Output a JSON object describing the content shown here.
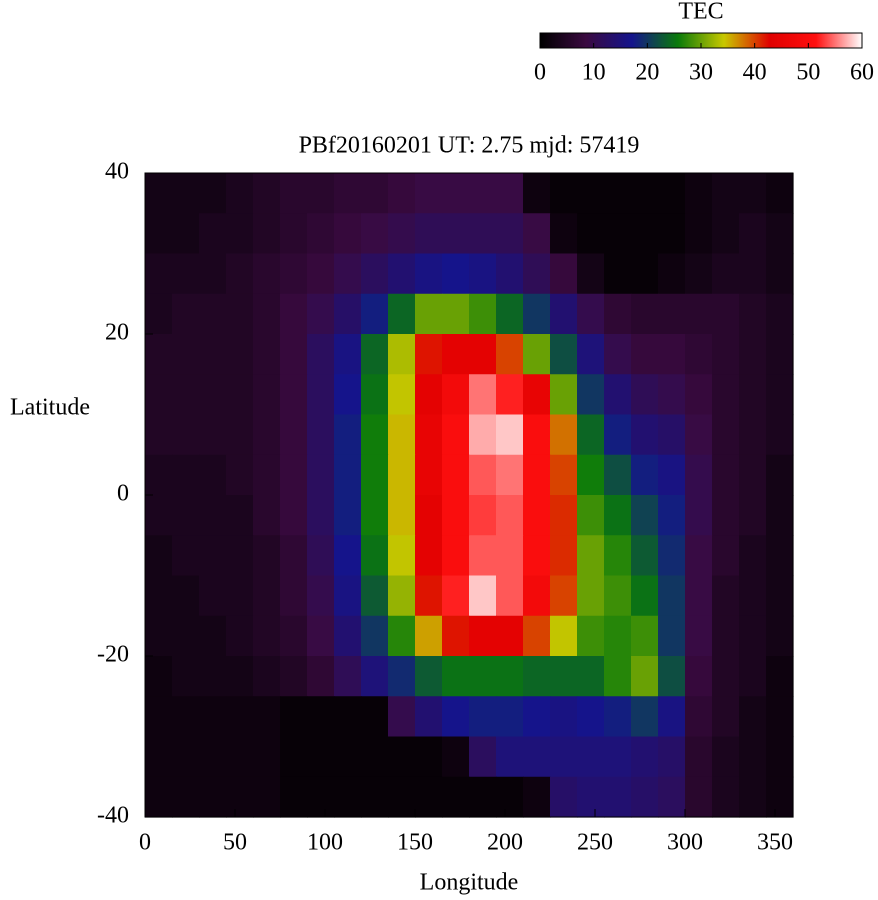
{
  "chart_data": {
    "type": "heatmap",
    "title": "PBf20160201  UT: 2.75  mjd: 57419",
    "xlabel": "Longitude",
    "ylabel": "Latitude",
    "xlim": [
      0,
      360
    ],
    "ylim": [
      -40,
      40
    ],
    "xticks": [
      0,
      50,
      100,
      150,
      200,
      250,
      300,
      350
    ],
    "yticks": [
      -40,
      -20,
      0,
      20,
      40
    ],
    "x": [
      7.5,
      22.5,
      37.5,
      52.5,
      67.5,
      82.5,
      97.5,
      112.5,
      127.5,
      142.5,
      157.5,
      172.5,
      187.5,
      202.5,
      217.5,
      232.5,
      247.5,
      262.5,
      277.5,
      292.5,
      307.5,
      322.5,
      337.5,
      352.5
    ],
    "y": [
      37.5,
      32.5,
      27.5,
      22.5,
      17.5,
      12.5,
      7.5,
      2.5,
      -2.5,
      -7.5,
      -12.5,
      -17.5,
      -22.5,
      -27.5,
      -32.5,
      -37.5
    ],
    "z": [
      [
        3,
        3,
        3,
        4,
        5,
        6,
        6,
        7,
        7,
        8,
        9,
        9,
        9,
        9,
        2,
        1,
        1,
        1,
        1,
        1,
        2,
        3,
        3,
        2
      ],
      [
        3,
        3,
        4,
        4,
        5,
        6,
        7,
        8,
        9,
        10,
        11,
        11,
        11,
        11,
        9,
        2,
        1,
        1,
        1,
        1,
        2,
        3,
        4,
        3
      ],
      [
        4,
        4,
        4,
        5,
        6,
        7,
        8,
        10,
        12,
        14,
        16,
        17,
        16,
        14,
        11,
        8,
        3,
        1,
        1,
        2,
        3,
        4,
        4,
        3
      ],
      [
        4,
        5,
        5,
        5,
        6,
        8,
        10,
        13,
        18,
        24,
        30,
        30,
        28,
        24,
        20,
        14,
        10,
        7,
        6,
        6,
        6,
        6,
        5,
        4
      ],
      [
        5,
        5,
        5,
        5,
        6,
        8,
        12,
        16,
        24,
        33,
        42,
        44,
        44,
        40,
        30,
        22,
        15,
        10,
        8,
        8,
        7,
        6,
        5,
        4
      ],
      [
        5,
        5,
        5,
        5,
        6,
        8,
        12,
        17,
        25,
        34,
        44,
        48,
        55,
        52,
        45,
        30,
        20,
        14,
        11,
        10,
        8,
        6,
        5,
        4
      ],
      [
        5,
        5,
        5,
        5,
        6,
        8,
        12,
        18,
        26,
        35,
        45,
        50,
        57,
        58,
        50,
        38,
        24,
        18,
        14,
        13,
        9,
        6,
        5,
        4
      ],
      [
        4,
        4,
        4,
        5,
        6,
        8,
        12,
        18,
        26,
        35,
        45,
        50,
        54,
        55,
        50,
        40,
        26,
        22,
        18,
        16,
        10,
        6,
        5,
        3
      ],
      [
        4,
        4,
        4,
        4,
        6,
        8,
        12,
        18,
        26,
        35,
        44,
        50,
        53,
        54,
        50,
        41,
        28,
        25,
        21,
        18,
        10,
        6,
        5,
        3
      ],
      [
        3,
        4,
        4,
        4,
        5,
        7,
        11,
        17,
        25,
        34,
        44,
        50,
        54,
        54,
        50,
        41,
        30,
        27,
        23,
        19,
        9,
        6,
        4,
        3
      ],
      [
        3,
        3,
        4,
        4,
        5,
        7,
        10,
        16,
        23,
        32,
        42,
        52,
        58,
        54,
        48,
        40,
        30,
        28,
        25,
        20,
        9,
        5,
        4,
        3
      ],
      [
        3,
        3,
        3,
        4,
        5,
        6,
        9,
        14,
        20,
        27,
        36,
        42,
        44,
        44,
        40,
        34,
        28,
        27,
        28,
        20,
        9,
        5,
        4,
        3
      ],
      [
        2,
        3,
        3,
        3,
        4,
        5,
        7,
        11,
        15,
        19,
        23,
        25,
        25,
        25,
        24,
        24,
        24,
        27,
        30,
        22,
        8,
        5,
        4,
        2
      ],
      [
        2,
        2,
        2,
        2,
        2,
        1,
        1,
        1,
        1,
        10,
        14,
        17,
        18,
        18,
        17,
        16,
        17,
        18,
        20,
        16,
        7,
        5,
        3,
        2
      ],
      [
        2,
        2,
        2,
        2,
        2,
        1,
        1,
        1,
        1,
        1,
        1,
        2,
        12,
        15,
        15,
        15,
        15,
        15,
        14,
        13,
        6,
        4,
        3,
        2
      ],
      [
        2,
        2,
        2,
        2,
        2,
        1,
        1,
        1,
        1,
        1,
        1,
        1,
        1,
        1,
        2,
        13,
        14,
        14,
        13,
        12,
        6,
        4,
        3,
        2
      ]
    ],
    "colorbar": {
      "label": "TEC",
      "zlim": [
        0,
        60
      ],
      "ticks": [
        0,
        10,
        20,
        30,
        40,
        50,
        60
      ],
      "colors": [
        "#000000",
        "#3a0a40",
        "#14148c",
        "#0a7a0a",
        "#c8c800",
        "#e00000",
        "#ff1010",
        "#ffffff"
      ]
    }
  }
}
